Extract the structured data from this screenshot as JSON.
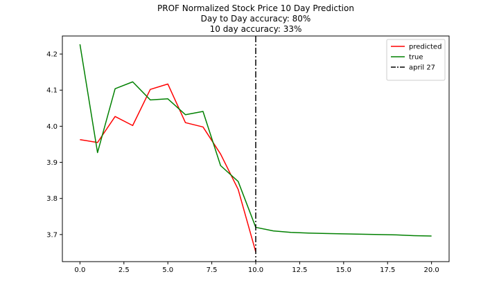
{
  "chart_data": {
    "type": "line",
    "title": [
      "PROF Normalized Stock Price 10 Day Prediction",
      "Day to Day accuracy: 80%",
      "10 day accuracy: 33%"
    ],
    "xlabel": "",
    "ylabel": "",
    "xlim": [
      -1,
      21
    ],
    "ylim": [
      3.625,
      4.25
    ],
    "xticks": [
      0,
      2.5,
      5,
      7.5,
      10,
      12.5,
      15,
      17.5,
      20
    ],
    "xtick_labels": [
      "0.0",
      "2.5",
      "5.0",
      "7.5",
      "10.0",
      "12.5",
      "15.0",
      "17.5",
      "20.0"
    ],
    "yticks": [
      3.7,
      3.8,
      3.9,
      4.0,
      4.1,
      4.2
    ],
    "ytick_labels": [
      "3.7",
      "3.8",
      "3.9",
      "4.0",
      "4.1",
      "4.2"
    ],
    "grid": false,
    "legend_position": "top-right",
    "series": [
      {
        "name": "predicted",
        "color": "#ff0000",
        "style": "solid",
        "x": [
          0,
          1,
          2,
          3,
          4,
          5,
          6,
          7,
          8,
          9,
          10
        ],
        "y": [
          3.963,
          3.955,
          4.027,
          4.002,
          4.102,
          4.117,
          4.01,
          3.998,
          3.923,
          3.825,
          3.652
        ]
      },
      {
        "name": "true",
        "color": "#008000",
        "style": "solid",
        "x": [
          0,
          1,
          2,
          3,
          4,
          5,
          6,
          7,
          8,
          9,
          10,
          11,
          12,
          13,
          14,
          15,
          16,
          17,
          18,
          19,
          20
        ],
        "y": [
          4.227,
          3.927,
          4.104,
          4.123,
          4.073,
          4.076,
          4.032,
          4.041,
          3.891,
          3.847,
          3.72,
          3.71,
          3.706,
          3.704,
          3.703,
          3.702,
          3.701,
          3.7,
          3.699,
          3.697,
          3.696
        ]
      }
    ],
    "vlines": [
      {
        "name": "april 27",
        "x": 10,
        "color": "#000000",
        "style": "dashdot"
      }
    ]
  }
}
